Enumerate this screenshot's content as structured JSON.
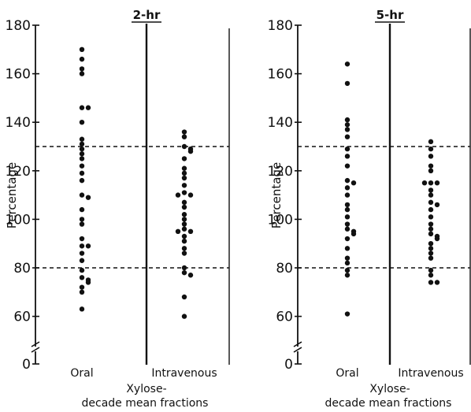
{
  "chart_data": [
    {
      "type": "scatter",
      "title": "2-hr",
      "ylabel": "Percentage",
      "xlabel_line1": "Xylose-",
      "xlabel_line2": "decade mean fractions",
      "categories": [
        "Oral",
        "Intravenous"
      ],
      "ylim": [
        0,
        180
      ],
      "yticks": [
        0,
        60,
        80,
        100,
        120,
        140,
        160,
        180
      ],
      "reference_lines": [
        80,
        130
      ],
      "series": [
        {
          "category": "Oral",
          "values": [
            170,
            166,
            162,
            160,
            146,
            146,
            140,
            133,
            131,
            129,
            127,
            125,
            122,
            119,
            116,
            110,
            109,
            104,
            100,
            98,
            92,
            89,
            89,
            86,
            83,
            79,
            76,
            75,
            74,
            72,
            70,
            63
          ]
        },
        {
          "category": "Intravenous",
          "values": [
            136,
            134,
            130,
            129,
            128,
            125,
            121,
            119,
            117,
            114,
            111,
            110,
            110,
            107,
            105,
            102,
            100,
            98,
            96,
            95,
            95,
            93,
            91,
            88,
            86,
            80,
            78,
            77,
            68,
            60
          ]
        }
      ]
    },
    {
      "type": "scatter",
      "title": "5-hr",
      "ylabel": "Percentage",
      "xlabel_line1": "Xylose-",
      "xlabel_line2": "decade mean fractions",
      "categories": [
        "Oral",
        "Intravenous"
      ],
      "ylim": [
        0,
        180
      ],
      "yticks": [
        0,
        60,
        80,
        100,
        120,
        140,
        160,
        180
      ],
      "reference_lines": [
        80,
        130
      ],
      "series": [
        {
          "category": "Oral",
          "values": [
            164,
            156,
            141,
            139,
            137,
            134,
            129,
            126,
            122,
            116,
            115,
            113,
            110,
            106,
            104,
            101,
            98,
            96,
            95,
            94,
            92,
            88,
            84,
            82,
            79,
            77,
            61
          ]
        },
        {
          "category": "Intravenous",
          "values": [
            132,
            129,
            126,
            122,
            120,
            115,
            115,
            115,
            112,
            110,
            107,
            106,
            104,
            101,
            98,
            96,
            94,
            93,
            92,
            90,
            88,
            86,
            84,
            79,
            77,
            74,
            74
          ]
        }
      ]
    }
  ]
}
